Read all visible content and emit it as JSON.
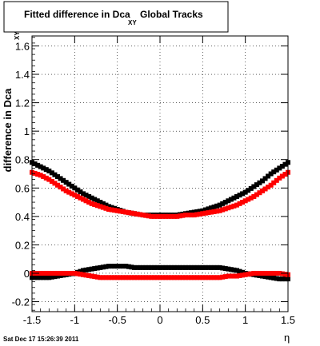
{
  "chart_data": {
    "type": "scatter",
    "title": {
      "main": "Fitted difference in Dca",
      "subscript": "XY",
      "suffix": "Global Tracks"
    },
    "xlabel": "η",
    "ylabel": {
      "main": "difference in Dca",
      "subscript": "XY"
    },
    "xlim": [
      -1.5,
      1.5
    ],
    "ylim": [
      -0.27,
      1.67
    ],
    "x_ticks": [
      {
        "value": -1.5,
        "label": "-1.5"
      },
      {
        "value": -1,
        "label": "-1"
      },
      {
        "value": -0.5,
        "label": "-0.5"
      },
      {
        "value": 0,
        "label": "0"
      },
      {
        "value": 0.5,
        "label": "0.5"
      },
      {
        "value": 1,
        "label": "1"
      },
      {
        "value": 1.5,
        "label": "1.5"
      }
    ],
    "y_ticks": [
      {
        "value": -0.2,
        "label": "-0.2"
      },
      {
        "value": 0,
        "label": "0"
      },
      {
        "value": 0.2,
        "label": "0.2"
      },
      {
        "value": 0.4,
        "label": "0.4"
      },
      {
        "value": 0.6,
        "label": "0.6"
      },
      {
        "value": 0.8,
        "label": "0.8"
      },
      {
        "value": 1,
        "label": "1"
      },
      {
        "value": 1.2,
        "label": "1.2"
      },
      {
        "value": 1.4,
        "label": "1.4"
      },
      {
        "value": 1.6,
        "label": "1.6"
      }
    ],
    "grid": true,
    "marker": "square",
    "series": [
      {
        "color": "#000000",
        "x": [
          -1.5,
          -1.4,
          -1.3,
          -1.2,
          -1.1,
          -1.0,
          -0.9,
          -0.8,
          -0.7,
          -0.6,
          -0.5,
          -0.4,
          -0.3,
          -0.2,
          -0.1,
          0.0,
          0.1,
          0.2,
          0.3,
          0.4,
          0.5,
          0.6,
          0.7,
          0.8,
          0.9,
          1.0,
          1.1,
          1.2,
          1.3,
          1.4,
          1.5
        ],
        "y": [
          0.78,
          0.75,
          0.72,
          0.68,
          0.64,
          0.6,
          0.56,
          0.53,
          0.5,
          0.47,
          0.45,
          0.43,
          0.42,
          0.41,
          0.41,
          0.41,
          0.41,
          0.41,
          0.42,
          0.43,
          0.44,
          0.46,
          0.48,
          0.51,
          0.54,
          0.57,
          0.61,
          0.65,
          0.7,
          0.74,
          0.78
        ]
      },
      {
        "color": "#ff0000",
        "x": [
          -1.5,
          -1.4,
          -1.3,
          -1.2,
          -1.1,
          -1.0,
          -0.9,
          -0.8,
          -0.7,
          -0.6,
          -0.5,
          -0.4,
          -0.3,
          -0.2,
          -0.1,
          0.0,
          0.1,
          0.2,
          0.3,
          0.4,
          0.5,
          0.6,
          0.7,
          0.8,
          0.9,
          1.0,
          1.1,
          1.2,
          1.3,
          1.4,
          1.5
        ],
        "y": [
          0.71,
          0.69,
          0.66,
          0.62,
          0.58,
          0.55,
          0.52,
          0.49,
          0.47,
          0.45,
          0.44,
          0.43,
          0.42,
          0.41,
          0.4,
          0.4,
          0.4,
          0.4,
          0.41,
          0.41,
          0.42,
          0.43,
          0.44,
          0.46,
          0.48,
          0.51,
          0.54,
          0.58,
          0.62,
          0.67,
          0.71
        ]
      },
      {
        "color": "#000000",
        "x": [
          -1.5,
          -1.4,
          -1.3,
          -1.2,
          -1.1,
          -1.0,
          -0.9,
          -0.8,
          -0.7,
          -0.6,
          -0.5,
          -0.4,
          -0.3,
          -0.2,
          -0.1,
          0.0,
          0.1,
          0.2,
          0.3,
          0.4,
          0.5,
          0.6,
          0.7,
          0.8,
          0.9,
          1.0,
          1.1,
          1.2,
          1.3,
          1.4,
          1.5
        ],
        "y": [
          -0.03,
          -0.03,
          -0.03,
          -0.02,
          -0.01,
          0.0,
          0.02,
          0.03,
          0.04,
          0.05,
          0.05,
          0.05,
          0.04,
          0.04,
          0.04,
          0.04,
          0.04,
          0.04,
          0.04,
          0.04,
          0.04,
          0.04,
          0.04,
          0.03,
          0.02,
          0.0,
          -0.01,
          -0.02,
          -0.03,
          -0.04,
          -0.04
        ]
      },
      {
        "color": "#ff0000",
        "x": [
          -1.5,
          -1.4,
          -1.3,
          -1.2,
          -1.1,
          -1.0,
          -0.9,
          -0.8,
          -0.7,
          -0.6,
          -0.5,
          -0.4,
          -0.3,
          -0.2,
          -0.1,
          0.0,
          0.1,
          0.2,
          0.3,
          0.4,
          0.5,
          0.6,
          0.7,
          0.8,
          0.9,
          1.0,
          1.1,
          1.2,
          1.3,
          1.4,
          1.5
        ],
        "y": [
          0.0,
          0.0,
          0.0,
          0.0,
          0.0,
          0.0,
          -0.01,
          -0.02,
          -0.03,
          -0.03,
          -0.03,
          -0.03,
          -0.03,
          -0.03,
          -0.03,
          -0.03,
          -0.03,
          -0.03,
          -0.03,
          -0.03,
          -0.03,
          -0.03,
          -0.03,
          -0.02,
          -0.02,
          -0.01,
          0.0,
          0.0,
          0.0,
          0.0,
          -0.01
        ]
      }
    ]
  },
  "footer": {
    "timestamp": "Sat Dec 17 15:26:39 2011"
  }
}
